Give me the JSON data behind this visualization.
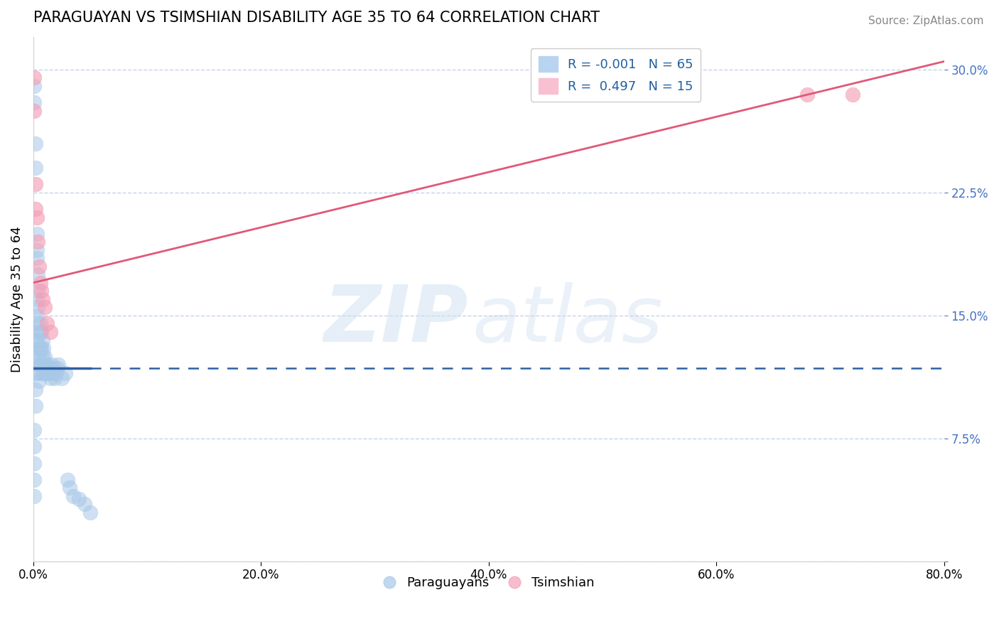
{
  "title": "PARAGUAYAN VS TSIMSHIAN DISABILITY AGE 35 TO 64 CORRELATION CHART",
  "source": "Source: ZipAtlas.com",
  "ylabel": "Disability Age 35 to 64",
  "xlim": [
    0.0,
    0.8
  ],
  "ylim": [
    0.0,
    0.32
  ],
  "xticks": [
    0.0,
    0.2,
    0.4,
    0.6,
    0.8
  ],
  "xtick_labels": [
    "0.0%",
    "20.0%",
    "40.0%",
    "60.0%",
    "80.0%"
  ],
  "yticks": [
    0.0,
    0.075,
    0.15,
    0.225,
    0.3
  ],
  "ytick_labels": [
    "",
    "7.5%",
    "15.0%",
    "22.5%",
    "30.0%"
  ],
  "legend_labels": [
    "Paraguayans",
    "Tsimshian"
  ],
  "R_paraguayan": -0.001,
  "N_paraguayan": 65,
  "R_tsimshian": 0.497,
  "N_tsimshian": 15,
  "blue_color": "#a8c8e8",
  "pink_color": "#f4a0b8",
  "blue_line_color": "#3060a0",
  "pink_line_color": "#e05878",
  "par_trend_y": 0.118,
  "tsi_trend_x0": 0.0,
  "tsi_trend_y0": 0.17,
  "tsi_trend_x1": 0.8,
  "tsi_trend_y1": 0.305,
  "paraguayan_x": [
    0.001,
    0.001,
    0.001,
    0.001,
    0.001,
    0.001,
    0.001,
    0.002,
    0.002,
    0.002,
    0.002,
    0.002,
    0.002,
    0.002,
    0.003,
    0.003,
    0.003,
    0.003,
    0.003,
    0.003,
    0.004,
    0.004,
    0.004,
    0.004,
    0.004,
    0.005,
    0.005,
    0.005,
    0.005,
    0.005,
    0.006,
    0.006,
    0.006,
    0.006,
    0.007,
    0.007,
    0.007,
    0.008,
    0.008,
    0.008,
    0.009,
    0.009,
    0.01,
    0.01,
    0.01,
    0.012,
    0.012,
    0.013,
    0.014,
    0.015,
    0.016,
    0.017,
    0.018,
    0.019,
    0.02,
    0.021,
    0.022,
    0.025,
    0.028,
    0.03,
    0.032,
    0.035,
    0.04,
    0.045,
    0.05
  ],
  "paraguayan_y": [
    0.29,
    0.28,
    0.08,
    0.07,
    0.06,
    0.05,
    0.04,
    0.255,
    0.24,
    0.135,
    0.125,
    0.115,
    0.105,
    0.095,
    0.2,
    0.19,
    0.185,
    0.16,
    0.15,
    0.14,
    0.175,
    0.165,
    0.155,
    0.145,
    0.135,
    0.13,
    0.125,
    0.12,
    0.115,
    0.11,
    0.145,
    0.14,
    0.13,
    0.12,
    0.14,
    0.13,
    0.12,
    0.135,
    0.125,
    0.115,
    0.13,
    0.12,
    0.125,
    0.12,
    0.115,
    0.12,
    0.115,
    0.118,
    0.115,
    0.112,
    0.12,
    0.115,
    0.118,
    0.112,
    0.115,
    0.118,
    0.12,
    0.112,
    0.115,
    0.05,
    0.045,
    0.04,
    0.038,
    0.035,
    0.03
  ],
  "tsimshian_x": [
    0.001,
    0.001,
    0.002,
    0.002,
    0.003,
    0.004,
    0.005,
    0.006,
    0.007,
    0.008,
    0.01,
    0.012,
    0.015,
    0.68,
    0.72
  ],
  "tsimshian_y": [
    0.295,
    0.275,
    0.23,
    0.215,
    0.21,
    0.195,
    0.18,
    0.17,
    0.165,
    0.16,
    0.155,
    0.145,
    0.14,
    0.285,
    0.285
  ]
}
